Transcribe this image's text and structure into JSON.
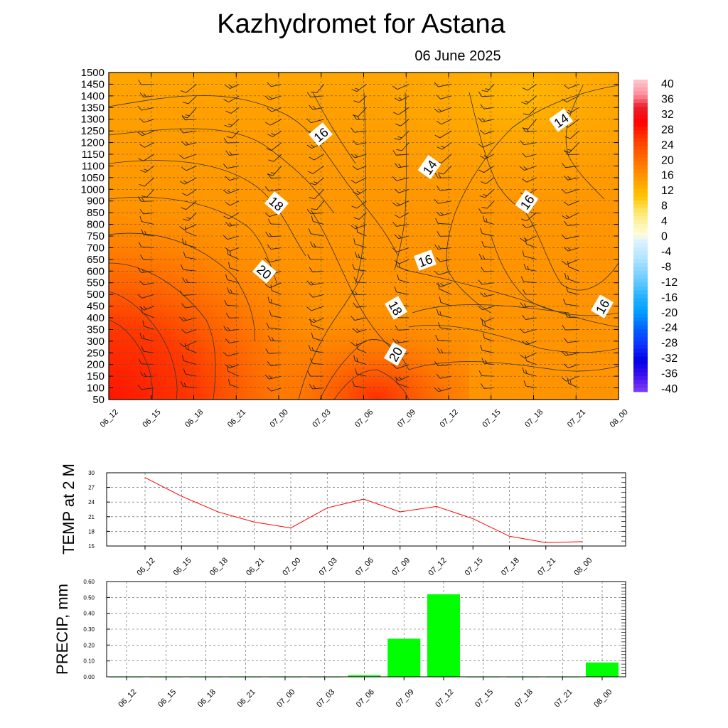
{
  "page": {
    "title": "Kazhydromet  for Astana",
    "date": "06 June 2025"
  },
  "time_labels": [
    "06_12",
    "06_15",
    "06_18",
    "06_21",
    "07_00",
    "07_03",
    "07_06",
    "07_09",
    "07_12",
    "07_15",
    "07_18",
    "07_21",
    "08_00"
  ],
  "chart_data": [
    {
      "type": "heatmap",
      "title": "Kazhydromet  for Astana",
      "subtitle": "06 June 2025",
      "x": [
        "06_12",
        "06_15",
        "06_18",
        "06_21",
        "07_00",
        "07_03",
        "07_06",
        "07_09",
        "07_12",
        "07_15",
        "07_18",
        "07_21",
        "08_00"
      ],
      "y_levels": [
        50,
        100,
        150,
        200,
        250,
        300,
        350,
        400,
        450,
        500,
        550,
        600,
        650,
        700,
        750,
        800,
        850,
        900,
        1000,
        1050,
        1100,
        1150,
        1200,
        1250,
        1300,
        1350,
        1400,
        1450,
        1500
      ],
      "colorbar": {
        "ticks": [
          40,
          36,
          32,
          28,
          24,
          20,
          16,
          12,
          8,
          4,
          0,
          -4,
          -8,
          -12,
          -16,
          -20,
          -24,
          -28,
          -32,
          -36,
          -40
        ],
        "range": [
          -40,
          40
        ]
      },
      "contour_labels": [
        "16",
        "14",
        "14",
        "18",
        "16",
        "16",
        "20",
        "18",
        "16",
        "20"
      ],
      "wind_barbs": true,
      "grid": true
    },
    {
      "type": "line",
      "ylabel": "TEMP at 2 M",
      "x": [
        "06_12",
        "06_15",
        "06_18",
        "06_21",
        "07_00",
        "07_03",
        "07_06",
        "07_09",
        "07_12",
        "07_15",
        "07_18",
        "07_21",
        "08_00"
      ],
      "series": [
        {
          "values": [
            29.0,
            25.2,
            22.0,
            19.9,
            18.7,
            22.8,
            24.6,
            22.0,
            23.1,
            20.6,
            17.0,
            15.7,
            15.9
          ]
        }
      ],
      "yticks": [
        15,
        18,
        21,
        24,
        27,
        30
      ],
      "ylim": [
        15,
        30
      ],
      "color": "#ff0000",
      "grid": true
    },
    {
      "type": "bar",
      "ylabel": "PRECIP, mm",
      "categories": [
        "06_12",
        "06_15",
        "06_18",
        "06_21",
        "07_00",
        "07_03",
        "07_06",
        "07_09",
        "07_12",
        "07_15",
        "07_18",
        "07_21",
        "08_00"
      ],
      "values": [
        0.0,
        0.0,
        0.0,
        0.0,
        0.0,
        0.0,
        0.01,
        0.24,
        0.52,
        0.0,
        0.0,
        0.0,
        0.09
      ],
      "yticks": [
        "0.00",
        "0.10",
        "0.20",
        "0.30",
        "0.40",
        "0.50",
        "0.60"
      ],
      "ylim": [
        0,
        0.6
      ],
      "color": "#00ff00",
      "grid": true
    }
  ]
}
